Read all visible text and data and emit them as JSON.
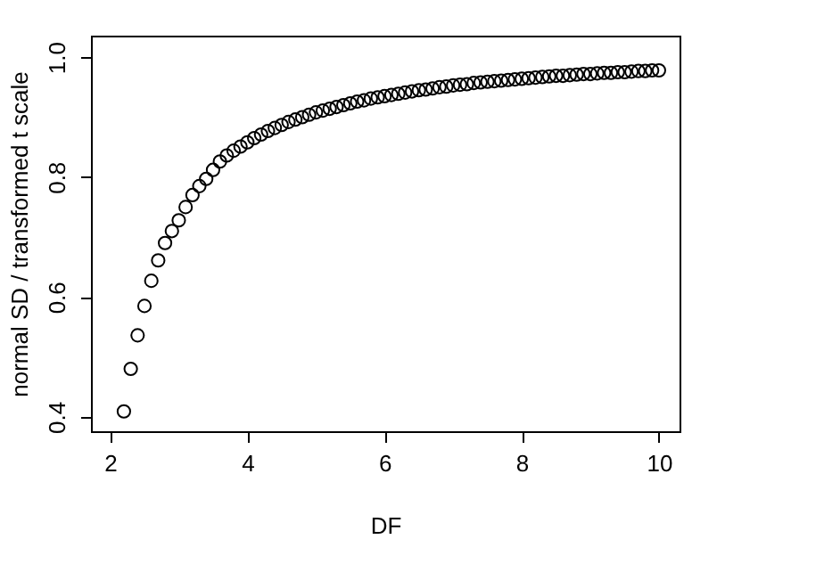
{
  "chart_data": {
    "type": "scatter",
    "xlabel": "DF",
    "ylabel": "normal SD / transformed t scale",
    "marker": "circle",
    "grid": false,
    "xlim": [
      1.72,
      10.3
    ],
    "ylim": [
      0.376,
      1.036
    ],
    "xticks": [
      2,
      4,
      6,
      8,
      10
    ],
    "yticks": [
      0.4,
      0.6,
      0.8,
      {
        "value": 1.0,
        "label": "1.0"
      }
    ],
    "x": [
      2.2,
      2.3,
      2.4,
      2.5,
      2.6,
      2.7,
      2.8,
      2.9,
      3.0,
      3.1,
      3.2,
      3.3,
      3.4,
      3.5,
      3.6,
      3.7,
      3.8,
      3.9,
      4.0,
      4.1,
      4.2,
      4.3,
      4.4,
      4.5,
      4.6,
      4.7,
      4.8,
      4.9,
      5.0,
      5.1,
      5.2,
      5.3,
      5.4,
      5.5,
      5.6,
      5.7,
      5.8,
      5.9,
      6.0,
      6.1,
      6.2,
      6.3,
      6.4,
      6.5,
      6.6,
      6.7,
      6.8,
      6.9,
      7.0,
      7.1,
      7.2,
      7.3,
      7.4,
      7.5,
      7.6,
      7.7,
      7.8,
      7.9,
      8.0,
      8.1,
      8.2,
      8.3,
      8.4,
      8.5,
      8.6,
      8.7,
      8.8,
      8.9,
      9.0,
      9.1,
      9.2,
      9.3,
      9.4,
      9.5,
      9.6,
      9.7,
      9.8,
      9.9,
      10.0
    ],
    "series": [
      {
        "color": "#000000",
        "values": [
          0.409,
          0.48,
          0.536,
          0.585,
          0.627,
          0.661,
          0.69,
          0.71,
          0.728,
          0.75,
          0.77,
          0.785,
          0.797,
          0.812,
          0.826,
          0.836,
          0.844,
          0.851,
          0.858,
          0.865,
          0.871,
          0.877,
          0.882,
          0.887,
          0.892,
          0.896,
          0.9,
          0.904,
          0.908,
          0.911,
          0.914,
          0.917,
          0.92,
          0.923,
          0.926,
          0.928,
          0.931,
          0.933,
          0.935,
          0.937,
          0.939,
          0.941,
          0.943,
          0.945,
          0.946,
          0.948,
          0.95,
          0.951,
          0.953,
          0.954,
          0.955,
          0.957,
          0.958,
          0.959,
          0.96,
          0.961,
          0.962,
          0.963,
          0.964,
          0.965,
          0.966,
          0.967,
          0.968,
          0.969,
          0.969,
          0.97,
          0.971,
          0.972,
          0.972,
          0.973,
          0.974,
          0.974,
          0.975,
          0.975,
          0.976,
          0.977,
          0.977,
          0.978,
          0.978
        ]
      }
    ]
  }
}
